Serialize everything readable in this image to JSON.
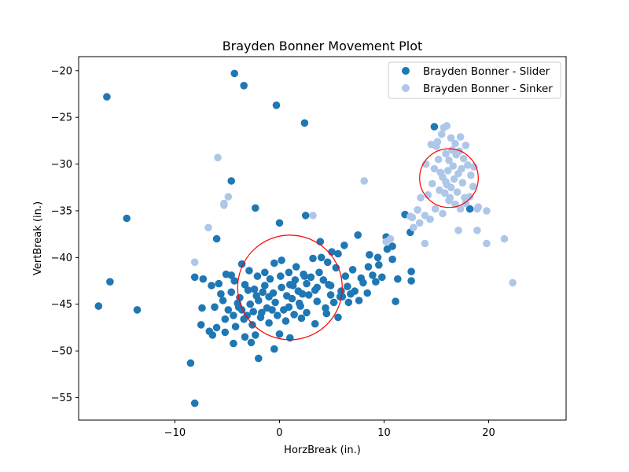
{
  "chart_data": {
    "type": "scatter",
    "title": "Brayden Bonner Movement Plot",
    "xlabel": "HorzBreak (in.)",
    "ylabel": "VertBreak (in.)",
    "xlim": [
      -19.2,
      27.4
    ],
    "ylim": [
      -57.4,
      -18.5
    ],
    "xticks": [
      -10,
      0,
      10,
      20
    ],
    "yticks": [
      -55,
      -50,
      -45,
      -40,
      -35,
      -30,
      -25,
      -20
    ],
    "grid": false,
    "legend_position": "top-right",
    "series": [
      {
        "name": "Brayden Bonner - Slider",
        "color": "#1f77b4",
        "points": [
          [
            -16.5,
            -22.8
          ],
          [
            -4.3,
            -20.3
          ],
          [
            -3.4,
            -21.6
          ],
          [
            -0.3,
            -23.7
          ],
          [
            2.4,
            -25.6
          ],
          [
            -14.6,
            -35.8
          ],
          [
            -4.6,
            -31.8
          ],
          [
            -2.3,
            -34.7
          ],
          [
            0.0,
            -36.3
          ],
          [
            2.5,
            -35.5
          ],
          [
            -6.0,
            -38.0
          ],
          [
            -16.2,
            -42.6
          ],
          [
            -17.3,
            -45.2
          ],
          [
            -13.6,
            -45.6
          ],
          [
            -8.5,
            -51.3
          ],
          [
            -8.1,
            -55.6
          ],
          [
            -8.1,
            -42.1
          ],
          [
            -7.3,
            -42.3
          ],
          [
            -6.5,
            -43.0
          ],
          [
            -5.8,
            -42.8
          ],
          [
            -5.1,
            -41.8
          ],
          [
            -4.3,
            -42.5
          ],
          [
            -3.6,
            -40.7
          ],
          [
            -2.9,
            -41.4
          ],
          [
            -2.1,
            -42.0
          ],
          [
            -1.4,
            -41.6
          ],
          [
            -0.5,
            -40.6
          ],
          [
            0.2,
            -40.3
          ],
          [
            0.9,
            -41.6
          ],
          [
            1.6,
            -41.0
          ],
          [
            2.3,
            -41.8
          ],
          [
            3.2,
            -40.1
          ],
          [
            3.9,
            -38.3
          ],
          [
            4.6,
            -40.5
          ],
          [
            5.6,
            -39.6
          ],
          [
            6.2,
            -38.7
          ],
          [
            7.5,
            -37.6
          ],
          [
            8.6,
            -39.7
          ],
          [
            9.4,
            -40.0
          ],
          [
            10.2,
            -37.8
          ],
          [
            10.3,
            -39.1
          ],
          [
            10.8,
            -38.8
          ],
          [
            10.8,
            -40.2
          ],
          [
            12.0,
            -35.4
          ],
          [
            12.5,
            -37.3
          ],
          [
            14.8,
            -26.0
          ],
          [
            18.2,
            -34.8
          ],
          [
            12.6,
            -41.5
          ],
          [
            12.6,
            -42.5
          ],
          [
            11.3,
            -42.3
          ],
          [
            11.1,
            -44.7
          ],
          [
            9.5,
            -40.8
          ],
          [
            9.8,
            -42.1
          ],
          [
            8.9,
            -41.9
          ],
          [
            8.0,
            -42.7
          ],
          [
            7.2,
            -43.6
          ],
          [
            6.5,
            -43.1
          ],
          [
            5.8,
            -44.2
          ],
          [
            4.9,
            -43.0
          ],
          [
            4.2,
            -42.4
          ],
          [
            3.4,
            -43.5
          ],
          [
            2.6,
            -42.8
          ],
          [
            1.8,
            -43.6
          ],
          [
            1.0,
            -42.9
          ],
          [
            0.2,
            -43.2
          ],
          [
            -0.6,
            -43.8
          ],
          [
            -1.4,
            -43.0
          ],
          [
            -2.2,
            -44.1
          ],
          [
            -3.0,
            -43.5
          ],
          [
            -3.8,
            -44.3
          ],
          [
            -4.6,
            -43.7
          ],
          [
            -5.4,
            -44.6
          ],
          [
            -6.2,
            -45.3
          ],
          [
            -7.4,
            -45.4
          ],
          [
            -7.5,
            -47.2
          ],
          [
            -6.7,
            -47.9
          ],
          [
            -6.0,
            -47.5
          ],
          [
            -5.2,
            -46.6
          ],
          [
            -4.4,
            -46.2
          ],
          [
            -3.6,
            -45.6
          ],
          [
            -2.8,
            -45.0
          ],
          [
            -2.0,
            -44.6
          ],
          [
            -1.2,
            -45.4
          ],
          [
            -0.4,
            -44.8
          ],
          [
            0.4,
            -45.6
          ],
          [
            1.2,
            -44.4
          ],
          [
            2.0,
            -45.2
          ],
          [
            2.8,
            -44.0
          ],
          [
            3.6,
            -44.7
          ],
          [
            4.4,
            -45.4
          ],
          [
            5.2,
            -44.8
          ],
          [
            6.0,
            -44.2
          ],
          [
            6.8,
            -43.9
          ],
          [
            7.6,
            -44.6
          ],
          [
            8.4,
            -43.8
          ],
          [
            -4.2,
            -47.4
          ],
          [
            -3.4,
            -46.6
          ],
          [
            -2.6,
            -47.2
          ],
          [
            -1.8,
            -46.4
          ],
          [
            -1.0,
            -47.0
          ],
          [
            -0.2,
            -46.2
          ],
          [
            0.6,
            -46.8
          ],
          [
            1.4,
            -46.1
          ],
          [
            2.6,
            -45.9
          ],
          [
            3.4,
            -47.1
          ],
          [
            4.5,
            -46.0
          ],
          [
            5.6,
            -46.4
          ],
          [
            -4.4,
            -49.2
          ],
          [
            -3.3,
            -48.5
          ],
          [
            -2.7,
            -49.1
          ],
          [
            -2.0,
            -50.8
          ],
          [
            -0.5,
            -49.8
          ],
          [
            0.0,
            -48.2
          ],
          [
            1.0,
            -48.6
          ],
          [
            -2.3,
            -48.3
          ],
          [
            -5.2,
            -48.0
          ],
          [
            -6.4,
            -48.3
          ],
          [
            -4.0,
            -44.9
          ],
          [
            -3.1,
            -46.2
          ],
          [
            -1.6,
            -43.7
          ],
          [
            -0.9,
            -42.3
          ],
          [
            0.7,
            -44.1
          ],
          [
            1.5,
            -42.4
          ],
          [
            2.2,
            -43.9
          ],
          [
            3.0,
            -42.1
          ],
          [
            3.8,
            -41.6
          ],
          [
            4.7,
            -42.9
          ],
          [
            5.4,
            -41.1
          ],
          [
            6.3,
            -42.0
          ],
          [
            7.0,
            -41.3
          ],
          [
            7.8,
            -42.2
          ],
          [
            8.5,
            -41.0
          ],
          [
            9.2,
            -42.6
          ],
          [
            4.0,
            -40.0
          ],
          [
            5.0,
            -39.4
          ],
          [
            -4.6,
            -41.9
          ],
          [
            -5.6,
            -43.9
          ],
          [
            -3.3,
            -42.9
          ],
          [
            -1.0,
            -44.2
          ],
          [
            0.1,
            -42.0
          ],
          [
            1.9,
            -44.9
          ],
          [
            2.4,
            -42.0
          ],
          [
            3.6,
            -43.2
          ],
          [
            4.9,
            -44.0
          ],
          [
            6.6,
            -44.8
          ],
          [
            -2.4,
            -43.4
          ],
          [
            -1.7,
            -45.9
          ],
          [
            -0.7,
            -45.6
          ],
          [
            0.9,
            -45.3
          ],
          [
            2.1,
            -46.5
          ],
          [
            -3.9,
            -45.3
          ],
          [
            -4.9,
            -45.6
          ],
          [
            -2.5,
            -45.8
          ],
          [
            1.3,
            -43.0
          ],
          [
            5.9,
            -43.6
          ]
        ]
      },
      {
        "name": "Brayden Bonner - Sinker",
        "color": "#aec7e8",
        "points": [
          [
            -5.9,
            -29.3
          ],
          [
            -5.3,
            -34.4
          ],
          [
            -5.3,
            -34.2
          ],
          [
            -4.9,
            -33.5
          ],
          [
            -6.8,
            -36.8
          ],
          [
            -8.1,
            -40.5
          ],
          [
            3.2,
            -35.5
          ],
          [
            8.1,
            -31.8
          ],
          [
            10.6,
            -38.0
          ],
          [
            10.2,
            -38.3
          ],
          [
            13.9,
            -38.5
          ],
          [
            17.1,
            -37.1
          ],
          [
            18.9,
            -37.1
          ],
          [
            19.8,
            -38.5
          ],
          [
            21.5,
            -38.0
          ],
          [
            22.3,
            -42.7
          ],
          [
            12.8,
            -36.8
          ],
          [
            13.2,
            -34.9
          ],
          [
            13.5,
            -33.6
          ],
          [
            14.2,
            -33.3
          ],
          [
            14.6,
            -32.1
          ],
          [
            14.8,
            -30.5
          ],
          [
            15.2,
            -29.5
          ],
          [
            15.0,
            -28.1
          ],
          [
            15.5,
            -26.8
          ],
          [
            15.7,
            -26.1
          ],
          [
            16.0,
            -25.9
          ],
          [
            16.4,
            -27.2
          ],
          [
            16.8,
            -27.8
          ],
          [
            17.2,
            -28.6
          ],
          [
            17.6,
            -29.4
          ],
          [
            18.0,
            -30.1
          ],
          [
            18.3,
            -31.2
          ],
          [
            18.5,
            -32.4
          ],
          [
            18.2,
            -33.5
          ],
          [
            17.8,
            -34.2
          ],
          [
            17.3,
            -34.8
          ],
          [
            16.8,
            -34.3
          ],
          [
            16.3,
            -33.6
          ],
          [
            15.8,
            -33.1
          ],
          [
            15.3,
            -32.8
          ],
          [
            15.6,
            -31.4
          ],
          [
            16.1,
            -30.7
          ],
          [
            16.6,
            -30.2
          ],
          [
            17.1,
            -31.0
          ],
          [
            17.5,
            -32.0
          ],
          [
            17.0,
            -33.0
          ],
          [
            16.4,
            -32.5
          ],
          [
            15.9,
            -31.9
          ],
          [
            16.2,
            -29.6
          ],
          [
            16.9,
            -29.0
          ],
          [
            17.4,
            -30.5
          ],
          [
            16.7,
            -31.6
          ],
          [
            16.0,
            -32.2
          ],
          [
            15.4,
            -30.9
          ],
          [
            14.4,
            -35.9
          ],
          [
            13.9,
            -35.5
          ],
          [
            12.7,
            -35.7
          ],
          [
            13.4,
            -36.3
          ],
          [
            14.9,
            -34.8
          ],
          [
            15.6,
            -35.3
          ],
          [
            19.0,
            -34.6
          ],
          [
            19.8,
            -35.0
          ],
          [
            18.9,
            -34.8
          ],
          [
            14.0,
            -30.0
          ],
          [
            14.5,
            -27.9
          ],
          [
            15.1,
            -27.6
          ],
          [
            17.8,
            -28.0
          ],
          [
            18.6,
            -30.3
          ],
          [
            12.5,
            -35.6
          ],
          [
            16.5,
            -28.5
          ],
          [
            15.9,
            -28.9
          ],
          [
            17.3,
            -27.1
          ],
          [
            16.2,
            -33.9
          ],
          [
            17.7,
            -33.6
          ]
        ]
      }
    ],
    "annotations": [
      {
        "shape": "circle",
        "color": "#ff0000",
        "center": [
          1.0,
          -43.2
        ],
        "radius_x": 5.0
      },
      {
        "shape": "circle",
        "color": "#ff0000",
        "center": [
          16.2,
          -31.5
        ],
        "radius_x": 2.8
      }
    ]
  }
}
